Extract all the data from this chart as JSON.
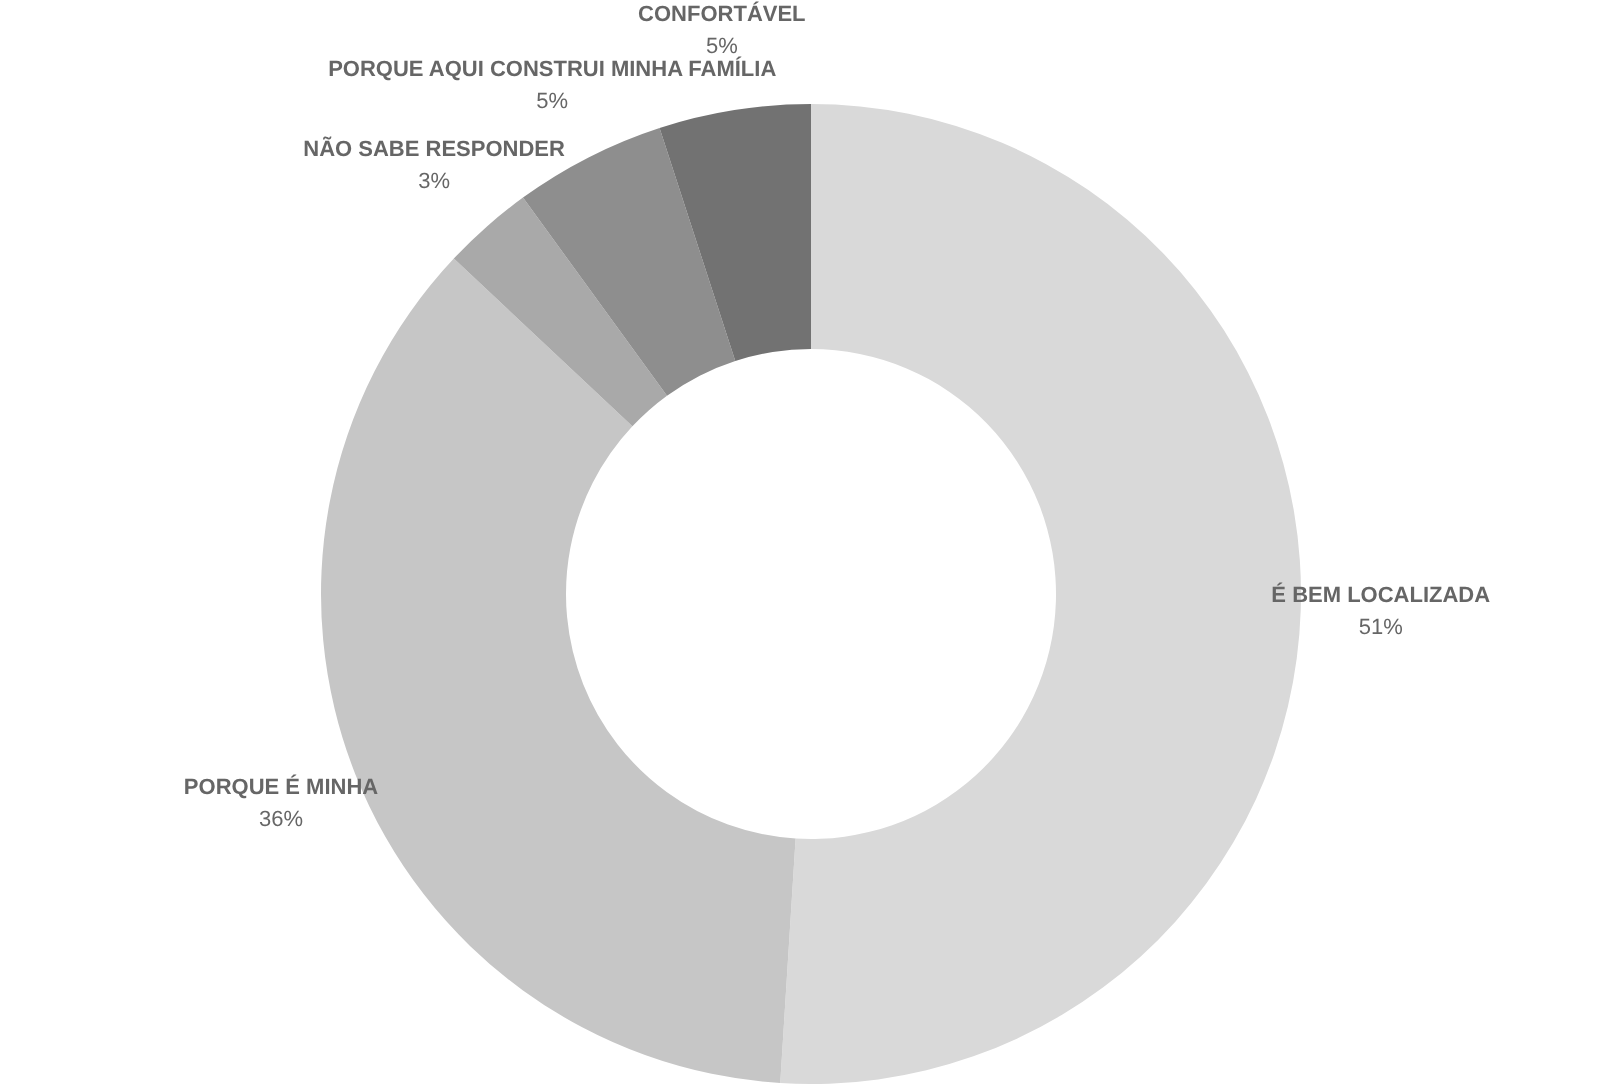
{
  "chart_data": {
    "type": "donut",
    "categories": [
      "É BEM LOCALIZADA",
      "PORQUE É MINHA",
      "NÃO SABE RESPONDER",
      "PORQUE AQUI CONSTRUI MINHA FAMÍLIA",
      "CONFORTÁVEL"
    ],
    "values": [
      51,
      36,
      3,
      5,
      5
    ],
    "value_labels": [
      "51%",
      "36%",
      "3%",
      "5%",
      "5%"
    ],
    "colors": [
      "#d9d9d9",
      "#c6c6c6",
      "#a9a9a9",
      "#8e8e8e",
      "#727272"
    ],
    "legend": false
  }
}
